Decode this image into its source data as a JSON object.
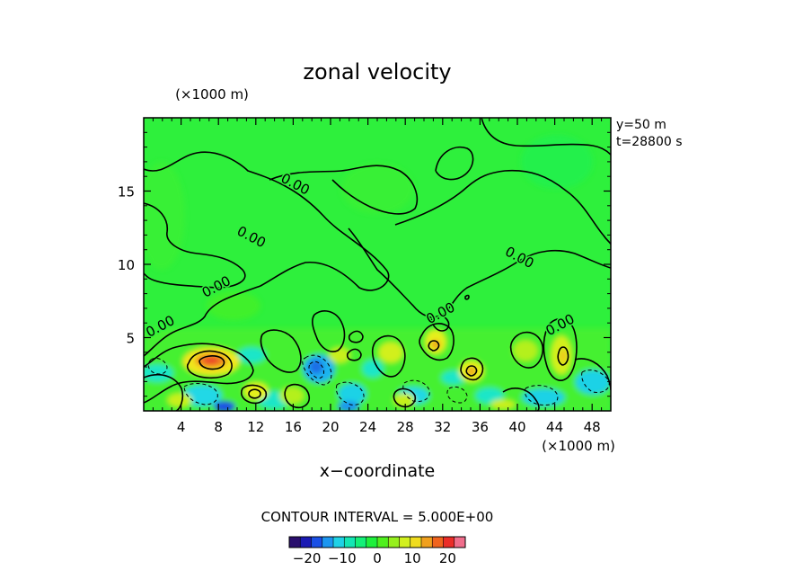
{
  "chart_data": {
    "type": "heatmap",
    "title": "zonal velocity",
    "xlabel": "x−coordinate",
    "x_unit": "(×1000 m)",
    "y_unit": "(×1000 m)",
    "xlim": [
      0,
      50
    ],
    "ylim": [
      0,
      20
    ],
    "x_ticks": [
      4,
      8,
      12,
      16,
      20,
      24,
      28,
      32,
      36,
      40,
      44,
      48
    ],
    "y_ticks": [
      5,
      10,
      15
    ],
    "info": [
      "y=50 m",
      "t=28800 s"
    ],
    "contour_interval_text": "CONTOUR INTERVAL = 5.000E+00",
    "contour_labels": [
      {
        "text": "0.00",
        "x": 16.0,
        "y": 15.2
      },
      {
        "text": "0.00",
        "x": 11.3,
        "y": 11.6
      },
      {
        "text": "0.00",
        "x": 8.0,
        "y": 8.2
      },
      {
        "text": "0.00",
        "x": 2.0,
        "y": 5.5
      },
      {
        "text": "0.00",
        "x": 40.0,
        "y": 10.2
      },
      {
        "text": "0.00",
        "x": 32.0,
        "y": 6.4
      },
      {
        "text": "0.00",
        "x": 44.8,
        "y": 5.6
      }
    ],
    "colorbar": {
      "ticks": [
        "−20",
        "−10",
        "0",
        "10",
        "20"
      ],
      "tick_values": [
        -20,
        -10,
        0,
        10,
        20
      ],
      "range": [
        -25,
        25
      ],
      "colors": [
        "#2a0f6e",
        "#1a1ab4",
        "#1a50e6",
        "#1c96f0",
        "#1fd2e6",
        "#14e6b4",
        "#14f078",
        "#1ef03c",
        "#50f01e",
        "#96f01e",
        "#d2f01e",
        "#f0dc1e",
        "#f0a01e",
        "#f0641e",
        "#eb2d28",
        "#f06e8c"
      ]
    }
  }
}
